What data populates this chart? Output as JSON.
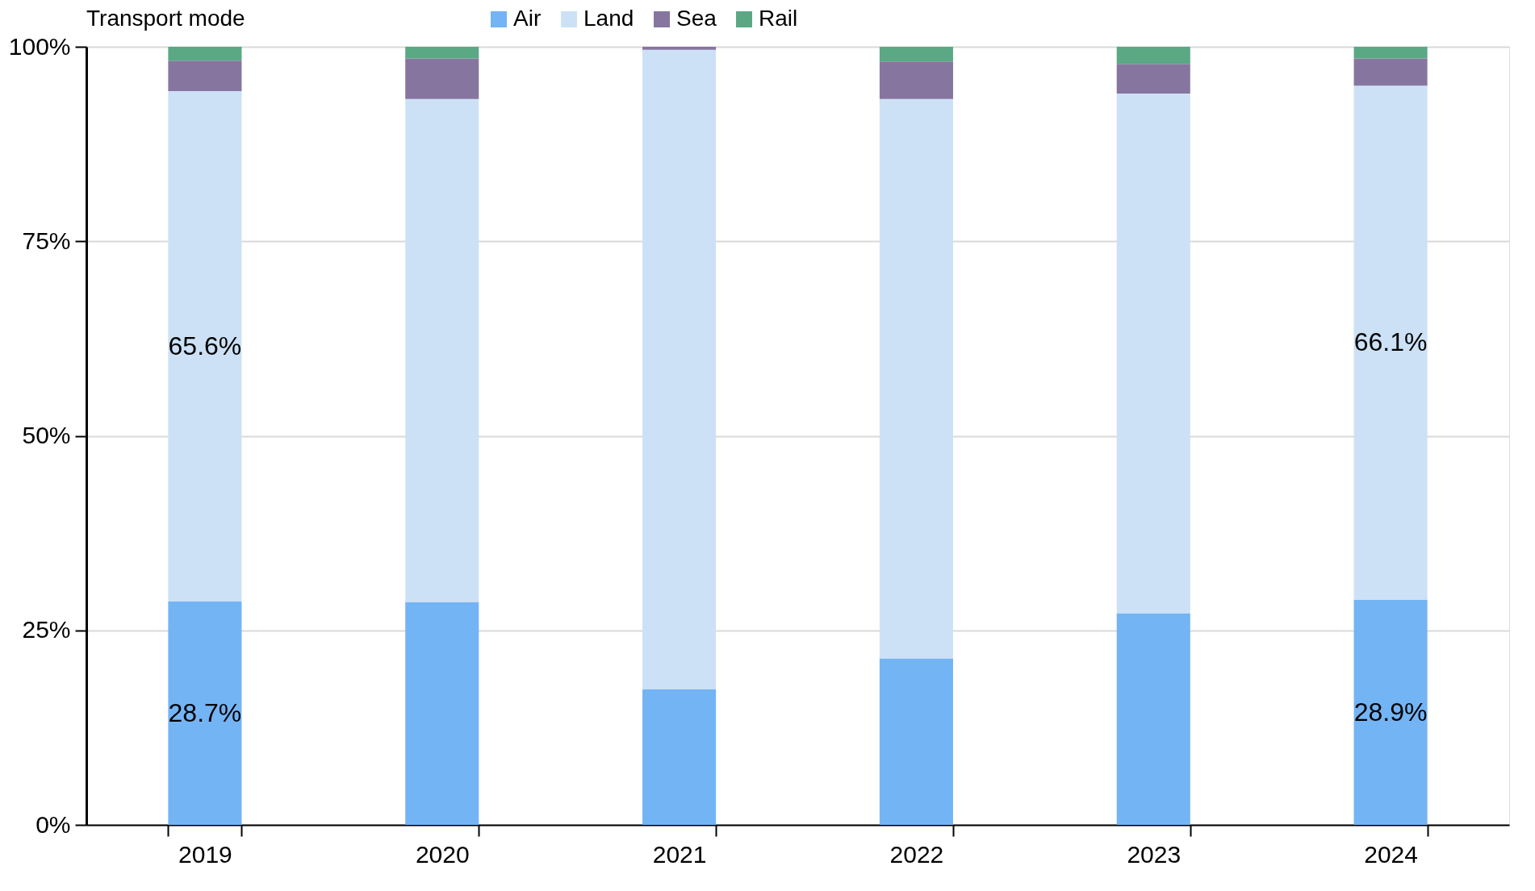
{
  "chart_data": {
    "type": "bar",
    "stacked": true,
    "legend_title": "Transport mode",
    "legend": "top",
    "categories": [
      "2019",
      "2020",
      "2021",
      "2022",
      "2023",
      "2024"
    ],
    "series": [
      {
        "name": "Air",
        "color": "#73b4f5",
        "values": [
          28.7,
          28.6,
          17.4,
          21.4,
          27.2,
          28.9
        ],
        "value_labels": [
          "28.7%",
          null,
          null,
          null,
          null,
          "28.9%"
        ]
      },
      {
        "name": "Land",
        "color": "#cce1f5",
        "values": [
          65.6,
          64.7,
          82.2,
          71.9,
          66.8,
          66.1
        ],
        "value_labels": [
          "65.6%",
          null,
          null,
          null,
          null,
          "66.1%"
        ]
      },
      {
        "name": "Sea",
        "color": "#86769f",
        "values": [
          3.9,
          5.2,
          0.4,
          4.8,
          3.8,
          3.5
        ]
      },
      {
        "name": "Rail",
        "color": "#5aa884",
        "values": [
          1.8,
          1.5,
          0.0,
          1.9,
          2.2,
          1.5
        ]
      }
    ],
    "ylim": [
      0,
      100
    ],
    "yticks": [
      {
        "value": 0,
        "label": "0%"
      },
      {
        "value": 25,
        "label": "25%"
      },
      {
        "value": 50,
        "label": "50%"
      },
      {
        "value": 75,
        "label": "75%"
      },
      {
        "value": 100,
        "label": "100%"
      }
    ],
    "grid": "y"
  }
}
